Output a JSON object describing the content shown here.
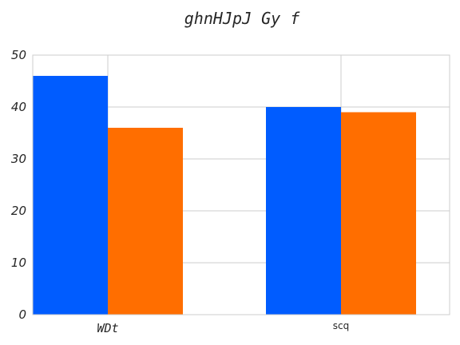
{
  "chart_data": {
    "type": "bar",
    "title": "ghnHJpJ Gy f",
    "categories": [
      "WDt",
      "scq"
    ],
    "series": [
      {
        "values": [
          46,
          40
        ],
        "color": "#005cff"
      },
      {
        "values": [
          36,
          39
        ],
        "color": "#ff6e00"
      }
    ],
    "ylim": [
      0,
      50
    ],
    "yticks": [
      "0",
      "10",
      "20",
      "30",
      "40",
      "50"
    ],
    "grid": true,
    "legend": "none"
  }
}
